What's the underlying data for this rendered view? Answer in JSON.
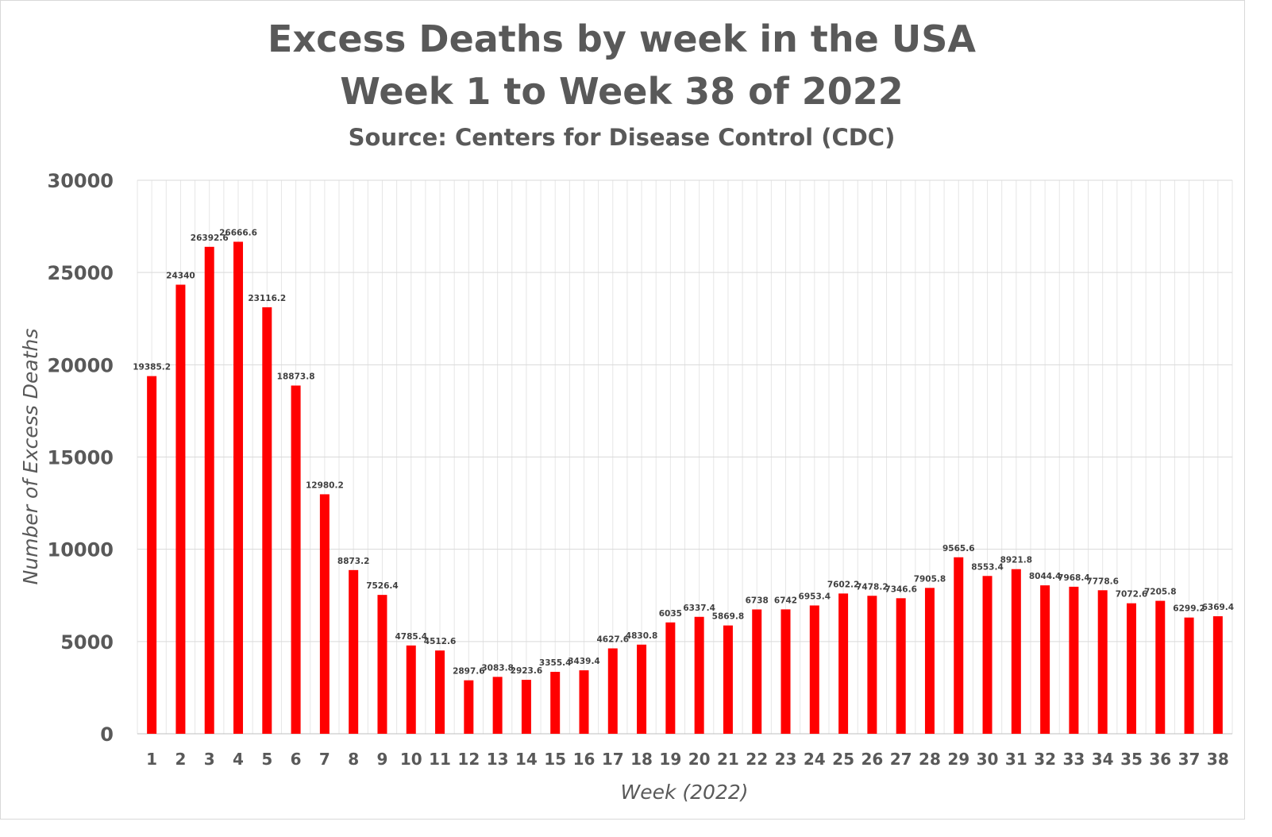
{
  "chart_data": {
    "type": "bar",
    "title": "Excess Deaths by week in the USA",
    "subtitle": "Week 1 to Week 38 of 2022",
    "source": "Source: Centers for Disease Control (CDC)",
    "xlabel": "Week (2022)",
    "ylabel": "Number of Excess Deaths",
    "ylim": [
      0,
      30000
    ],
    "yticks": [
      0,
      5000,
      10000,
      15000,
      20000,
      25000,
      30000
    ],
    "grid": true,
    "bar_color": "#ff0000",
    "categories": [
      "1",
      "2",
      "3",
      "4",
      "5",
      "6",
      "7",
      "8",
      "9",
      "10",
      "11",
      "12",
      "13",
      "14",
      "15",
      "16",
      "17",
      "18",
      "19",
      "20",
      "21",
      "22",
      "23",
      "24",
      "25",
      "26",
      "27",
      "28",
      "29",
      "30",
      "31",
      "32",
      "33",
      "34",
      "35",
      "36",
      "37",
      "38"
    ],
    "values": [
      19385.2,
      24340,
      26392.6,
      26666.6,
      23116.2,
      18873.8,
      12980.2,
      8873.2,
      7526.4,
      4785.4,
      4512.6,
      2897.6,
      3083.8,
      2923.6,
      3355.4,
      3439.4,
      4627.6,
      4830.8,
      6035,
      6337.4,
      5869.8,
      6738,
      6742,
      6953.4,
      7602.2,
      7478.2,
      7346.6,
      7905.8,
      9565.6,
      8553.4,
      8921.8,
      8044.4,
      7968.4,
      7778.6,
      7072.6,
      7205.8,
      6299.2,
      6369.4
    ],
    "value_labels": [
      "19385.2",
      "24340",
      "26392.6",
      "26666.6",
      "23116.2",
      "18873.8",
      "12980.2",
      "8873.2",
      "7526.4",
      "4785.4",
      "4512.6",
      "2897.6",
      "3083.8",
      "2923.6",
      "3355.4",
      "3439.4",
      "4627.6",
      "4830.8",
      "6035",
      "6337.4",
      "5869.8",
      "6738",
      "6742",
      "6953.4",
      "7602.2",
      "7478.2",
      "7346.6",
      "7905.8",
      "9565.6",
      "8553.4",
      "8921.8",
      "8044.4",
      "7968.4",
      "7778.6",
      "7072.6",
      "7205.8",
      "6299.2",
      "6369.4"
    ]
  }
}
